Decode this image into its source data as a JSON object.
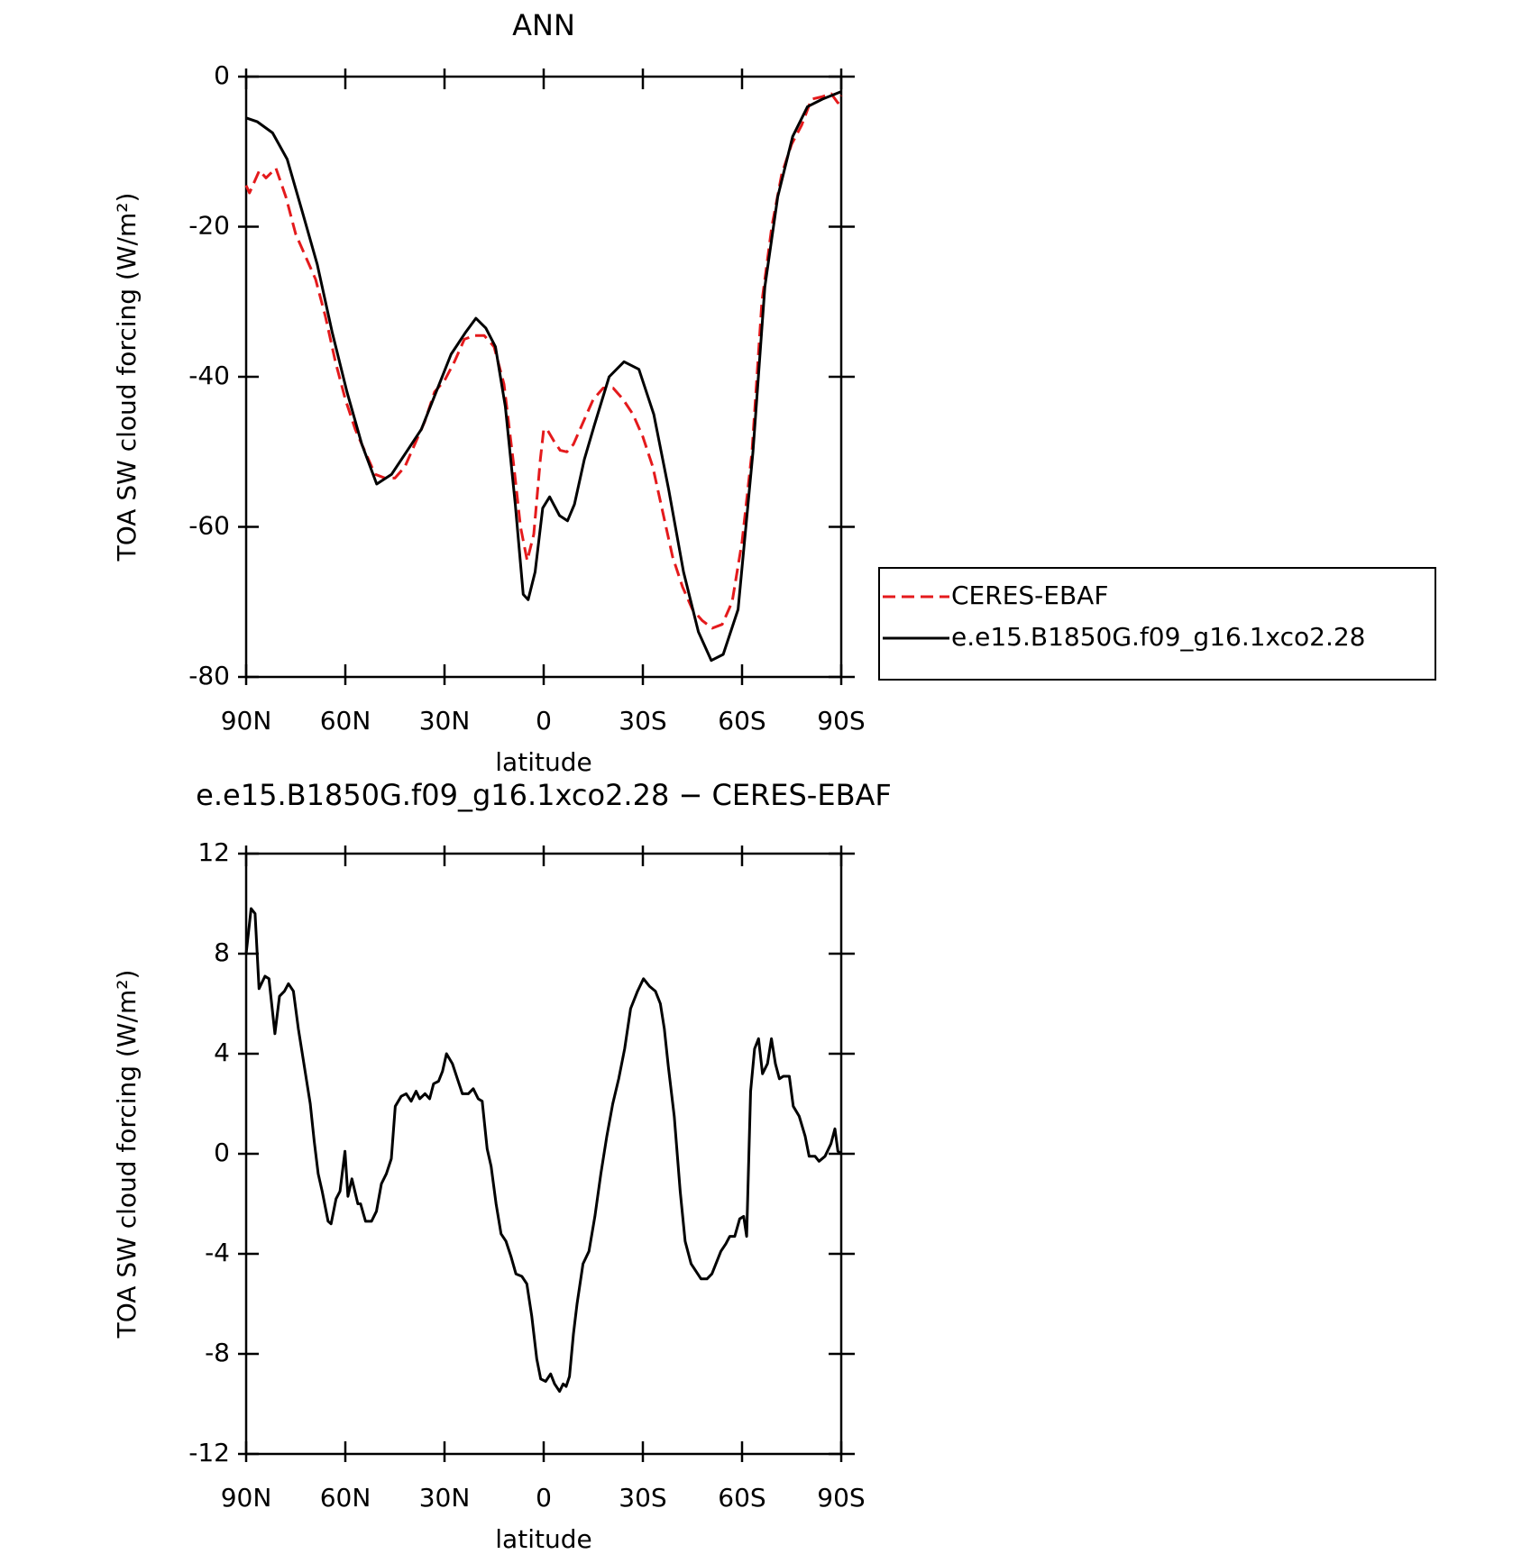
{
  "chart_data": [
    {
      "type": "line",
      "title": "ANN",
      "xlabel": "latitude",
      "ylabel": "TOA SW cloud forcing (W/m²)",
      "xlim": [
        90,
        -90
      ],
      "xticks": [
        {
          "value": 90,
          "label": "90N"
        },
        {
          "value": 60,
          "label": "60N"
        },
        {
          "value": 30,
          "label": "30N"
        },
        0,
        {
          "value": -30,
          "label": "30S"
        },
        {
          "value": -60,
          "label": "60S"
        },
        {
          "value": -90,
          "label": "90S"
        }
      ],
      "ylim": [
        -80,
        0
      ],
      "yticks": [
        0,
        -20,
        -40,
        -60,
        -80
      ],
      "legend": "right",
      "series": [
        {
          "name": "CERES-EBAF",
          "color": "#e41a1c",
          "dashed": true,
          "x": [
            90,
            89,
            86,
            84,
            81,
            78,
            75,
            72,
            69,
            66,
            63,
            60,
            57,
            54,
            51,
            48,
            45,
            42,
            39,
            36,
            33,
            30,
            27,
            24,
            21,
            18,
            15,
            12,
            9,
            7,
            5,
            3,
            1,
            0,
            -1,
            -3,
            -5,
            -7,
            -9,
            -12,
            -15,
            -18,
            -21,
            -24,
            -27,
            -30,
            -33,
            -36,
            -39,
            -42,
            -45,
            -48,
            -51,
            -54,
            -57,
            -60,
            -63,
            -66,
            -69,
            -72,
            -75,
            -78,
            -81,
            -84,
            -87,
            -89,
            -90
          ],
          "values": [
            -14.5,
            -15.5,
            -12.5,
            -13.5,
            -12.2,
            -16,
            -21,
            -24,
            -27,
            -32,
            -38,
            -43,
            -47,
            -50,
            -53,
            -53.5,
            -53.5,
            -52,
            -49,
            -46,
            -42,
            -40.5,
            -38,
            -35,
            -34.5,
            -34.5,
            -36,
            -41,
            -52,
            -60,
            -64.5,
            -61,
            -51,
            -47,
            -47,
            -48.5,
            -49.8,
            -50,
            -49,
            -46,
            -43,
            -41.5,
            -41.5,
            -43,
            -45,
            -48,
            -52,
            -58,
            -64,
            -68,
            -71,
            -72.5,
            -73.5,
            -73,
            -70,
            -62,
            -50,
            -30,
            -20,
            -13,
            -9,
            -6.5,
            -3,
            -2.7,
            -2.3,
            -3.5,
            -2.5
          ]
        },
        {
          "name": "e.e15.B1850G.f09_g16.1xco2.28",
          "color": "#000000",
          "dashed": false,
          "x": [
            90,
            86.7,
            82,
            77.6,
            73,
            68.5,
            64,
            59.5,
            55,
            50.5,
            46,
            41.5,
            37,
            32.5,
            28,
            23.5,
            20.5,
            17.5,
            14.6,
            11.6,
            8.6,
            6.2,
            4.7,
            2.6,
            0.3,
            -1.8,
            -4.8,
            -7.2,
            -9.3,
            -12.3,
            -15.3,
            -19.8,
            -24.3,
            -28.8,
            -33.3,
            -37.8,
            -42.3,
            -46.8,
            -50.7,
            -54.3,
            -58.8,
            -63.3,
            -66.9,
            -70.8,
            -75.3,
            -79.8,
            -84.3,
            -90
          ],
          "values": [
            -5.5,
            -6,
            -7.5,
            -11,
            -18,
            -25,
            -34,
            -42,
            -49,
            -54.3,
            -53,
            -50,
            -47,
            -42,
            -37,
            -34,
            -32.2,
            -33.5,
            -36,
            -44,
            -57,
            -69,
            -69.7,
            -66,
            -57.5,
            -56,
            -58.5,
            -59.2,
            -57,
            -51,
            -46.5,
            -40,
            -38,
            -39,
            -45,
            -55,
            -66,
            -74,
            -77.8,
            -77,
            -71,
            -50,
            -28,
            -16,
            -8,
            -4,
            -3,
            -2
          ]
        }
      ]
    },
    {
      "type": "line",
      "title": "e.e15.B1850G.f09_g16.1xco2.28 − CERES-EBAF",
      "xlabel": "latitude",
      "ylabel": "TOA SW cloud forcing (W/m²)",
      "xlim": [
        90,
        -90
      ],
      "xticks": [
        {
          "value": 90,
          "label": "90N"
        },
        {
          "value": 60,
          "label": "60N"
        },
        {
          "value": 30,
          "label": "30N"
        },
        0,
        {
          "value": -30,
          "label": "30S"
        },
        {
          "value": -60,
          "label": "60S"
        },
        {
          "value": -90,
          "label": "90S"
        }
      ],
      "ylim": [
        -12,
        12
      ],
      "yticks": [
        12,
        8,
        4,
        0,
        -4,
        -8,
        -12
      ],
      "series": [
        {
          "color": "#000000",
          "dashed": false,
          "x": [
            90,
            88.5,
            87.3,
            86.1,
            84.3,
            83.1,
            81.3,
            79.9,
            78.4,
            77.2,
            75.7,
            74.2,
            73,
            71.8,
            70.6,
            69.4,
            68.2,
            67,
            65.2,
            64.3,
            62.8,
            61.6,
            60.1,
            59.2,
            58,
            56.2,
            55.4,
            53.9,
            52.1,
            50.6,
            49.1,
            47.6,
            46.1,
            44.9,
            43.1,
            41.6,
            40.1,
            38.6,
            37.5,
            35.9,
            34.5,
            33.3,
            31.8,
            30.6,
            29.4,
            27.6,
            26.1,
            24.6,
            22.8,
            21.3,
            19.8,
            18.6,
            17.1,
            15.9,
            14.4,
            12.9,
            11.4,
            9.9,
            8.4,
            6.6,
            5.1,
            3.6,
            2.1,
            0.9,
            -0.6,
            -2.1,
            -3.3,
            -4.8,
            -5.9,
            -6.8,
            -7.8,
            -9,
            -10.1,
            -11.9,
            -13.7,
            -15.5,
            -17.3,
            -19.1,
            -20.9,
            -22.7,
            -24.5,
            -26.3,
            -28.4,
            -30.2,
            -32,
            -33.8,
            -35.3,
            -36.5,
            -37.7,
            -39.5,
            -41.3,
            -42.8,
            -44.6,
            -46.1,
            -47.6,
            -49.4,
            -50.9,
            -52.1,
            -53.6,
            -55.1,
            -56.3,
            -57.8,
            -59.3,
            -60.5,
            -61.4,
            -62.6,
            -63.8,
            -65,
            -66.2,
            -67.7,
            -68.9,
            -70.1,
            -71.3,
            -72.5,
            -74.3,
            -75.5,
            -77.3,
            -79.1,
            -80.3,
            -82.1,
            -83.3,
            -85.1,
            -86.9,
            -88.1,
            -89,
            -90
          ],
          "values": [
            8,
            9.8,
            9.6,
            6.6,
            7.1,
            7,
            4.8,
            6.3,
            6.5,
            6.8,
            6.5,
            5,
            4,
            3,
            2,
            0.5,
            -0.8,
            -1.5,
            -2.7,
            -2.8,
            -1.8,
            -1.5,
            0.1,
            -1.7,
            -1,
            -2,
            -2,
            -2.7,
            -2.7,
            -2.3,
            -1.2,
            -0.8,
            -0.2,
            1.9,
            2.3,
            2.4,
            2.1,
            2.5,
            2.2,
            2.4,
            2.2,
            2.8,
            2.9,
            3.3,
            4,
            3.6,
            3,
            2.4,
            2.4,
            2.6,
            2.2,
            2.1,
            0.2,
            -0.5,
            -2,
            -3.2,
            -3.5,
            -4.1,
            -4.8,
            -4.9,
            -5.2,
            -6.5,
            -8.2,
            -9,
            -9.1,
            -8.8,
            -9.2,
            -9.5,
            -9.2,
            -9.3,
            -8.9,
            -7.2,
            -6,
            -4.4,
            -3.9,
            -2.5,
            -0.8,
            0.7,
            2,
            3,
            4.2,
            5.8,
            6.5,
            7,
            6.7,
            6.5,
            6,
            5,
            3.5,
            1.5,
            -1.5,
            -3.5,
            -4.4,
            -4.7,
            -5,
            -5,
            -4.8,
            -4.4,
            -3.9,
            -3.6,
            -3.3,
            -3.3,
            -2.6,
            -2.5,
            -3.3,
            2.5,
            4.2,
            4.6,
            3.2,
            3.6,
            4.6,
            3.6,
            3,
            3.1,
            3.1,
            1.9,
            1.5,
            0.7,
            -0.1,
            -0.1,
            -0.3,
            -0.1,
            0.4,
            1,
            0.1,
            0
          ]
        }
      ]
    }
  ]
}
